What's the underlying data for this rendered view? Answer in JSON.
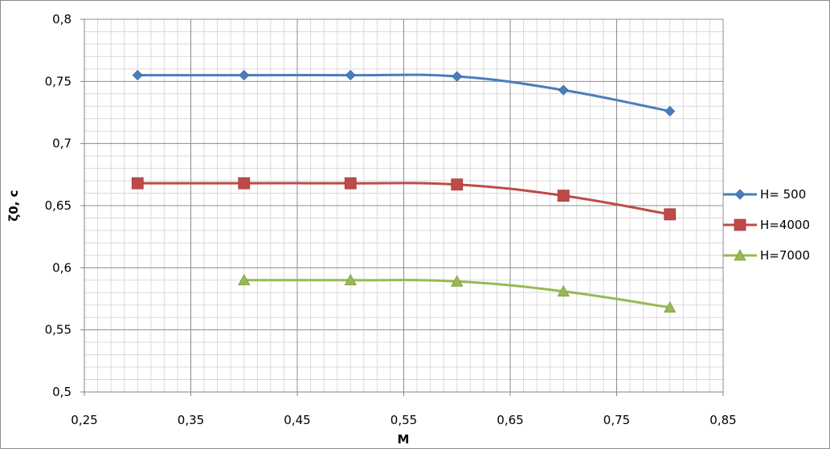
{
  "chart_data": {
    "type": "line",
    "xlabel": "M",
    "ylabel": "ζ0, c",
    "xlim": [
      0.25,
      0.85
    ],
    "ylim": [
      0.5,
      0.8
    ],
    "x_ticks": [
      0.25,
      0.35,
      0.45,
      0.55,
      0.65,
      0.75,
      0.85
    ],
    "x_tick_labels": [
      "0,25",
      "0,35",
      "0,45",
      "0,55",
      "0,65",
      "0,75",
      "0,85"
    ],
    "y_ticks": [
      0.5,
      0.55,
      0.6,
      0.65,
      0.7,
      0.75,
      0.8
    ],
    "y_tick_labels": [
      "0,5",
      "0,55",
      "0,6",
      "0,65",
      "0,7",
      "0,75",
      "0,8"
    ],
    "grid": true,
    "legend_position": "right",
    "series": [
      {
        "name": "H= 500",
        "color": "#4a7ebb",
        "marker": "diamond",
        "x": [
          0.3,
          0.4,
          0.5,
          0.6,
          0.7,
          0.8
        ],
        "y": [
          0.755,
          0.755,
          0.755,
          0.754,
          0.743,
          0.726
        ]
      },
      {
        "name": "H=4000",
        "color": "#be4b48",
        "marker": "square",
        "x": [
          0.3,
          0.4,
          0.5,
          0.6,
          0.7,
          0.8
        ],
        "y": [
          0.668,
          0.668,
          0.668,
          0.667,
          0.658,
          0.643
        ]
      },
      {
        "name": "H=7000",
        "color": "#98b954",
        "marker": "triangle",
        "x": [
          0.4,
          0.5,
          0.6,
          0.7,
          0.8
        ],
        "y": [
          0.59,
          0.59,
          0.589,
          0.581,
          0.568
        ]
      }
    ]
  }
}
